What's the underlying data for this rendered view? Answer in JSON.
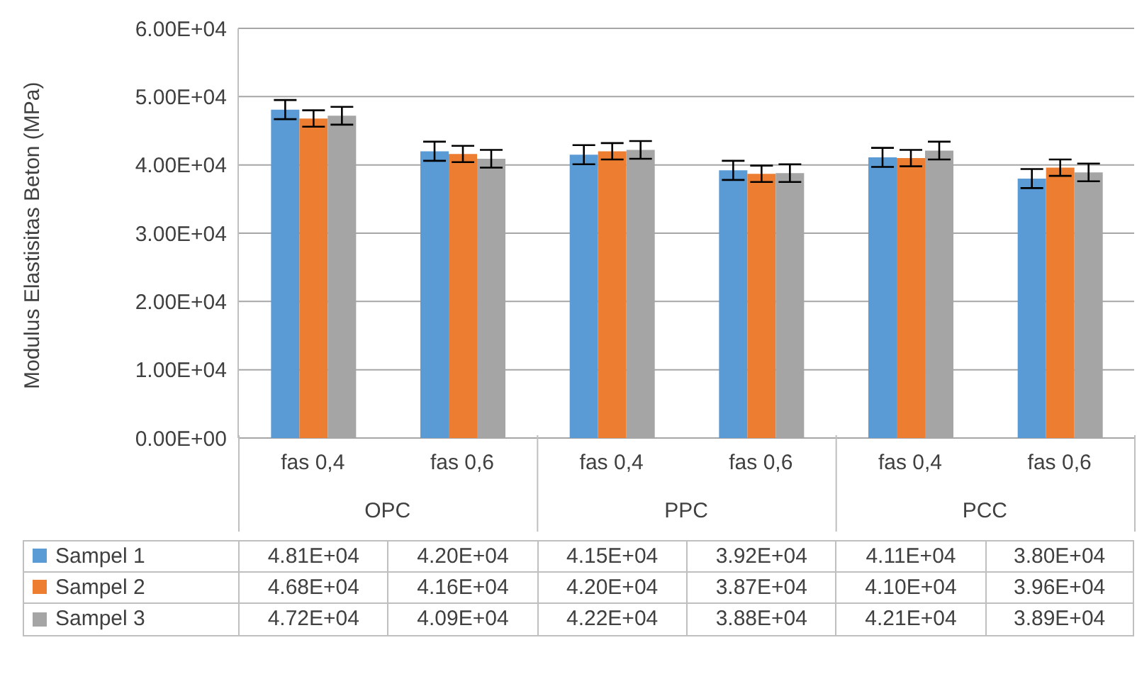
{
  "chart_data": {
    "type": "bar",
    "ylabel": "Modulus Elastisitas Beton (MPa)",
    "categories": [
      "fas 0,4",
      "fas 0,6",
      "fas 0,4",
      "fas 0,6",
      "fas 0,4",
      "fas 0,6"
    ],
    "annotations": [
      "OPC",
      "PPC",
      "PCC"
    ],
    "series": [
      {
        "name": "Sampel 1",
        "color": "#5b9bd5",
        "values": [
          48100,
          42000,
          41500,
          39200,
          41100,
          38000
        ],
        "errors": [
          1400,
          1400,
          1400,
          1400,
          1400,
          1400
        ],
        "value_labels": [
          "4.81E+04",
          "4.20E+04",
          "4.15E+04",
          "3.92E+04",
          "4.11E+04",
          "3.80E+04"
        ]
      },
      {
        "name": "Sampel 2",
        "color": "#ed7d31",
        "values": [
          46800,
          41600,
          42000,
          38700,
          41000,
          39600
        ],
        "errors": [
          1200,
          1200,
          1200,
          1200,
          1200,
          1200
        ],
        "value_labels": [
          "4.68E+04",
          "4.16E+04",
          "4.20E+04",
          "3.87E+04",
          "4.10E+04",
          "3.96E+04"
        ]
      },
      {
        "name": "Sampel 3",
        "color": "#a5a5a5",
        "values": [
          47200,
          40900,
          42200,
          38800,
          42100,
          38900
        ],
        "errors": [
          1300,
          1300,
          1300,
          1300,
          1300,
          1300
        ],
        "value_labels": [
          "4.72E+04",
          "4.09E+04",
          "4.22E+04",
          "3.88E+04",
          "4.21E+04",
          "3.89E+04"
        ]
      }
    ],
    "ylim": [
      0,
      60000
    ],
    "yticks": [
      {
        "value": 0,
        "label": "0.00E+00"
      },
      {
        "value": 10000,
        "label": "1.00E+04"
      },
      {
        "value": 20000,
        "label": "2.00E+04"
      },
      {
        "value": 30000,
        "label": "3.00E+04"
      },
      {
        "value": 40000,
        "label": "4.00E+04"
      },
      {
        "value": 50000,
        "label": "5.00E+04"
      },
      {
        "value": 60000,
        "label": "6.00E+04"
      }
    ],
    "grid": "y",
    "legend": "bottom"
  }
}
